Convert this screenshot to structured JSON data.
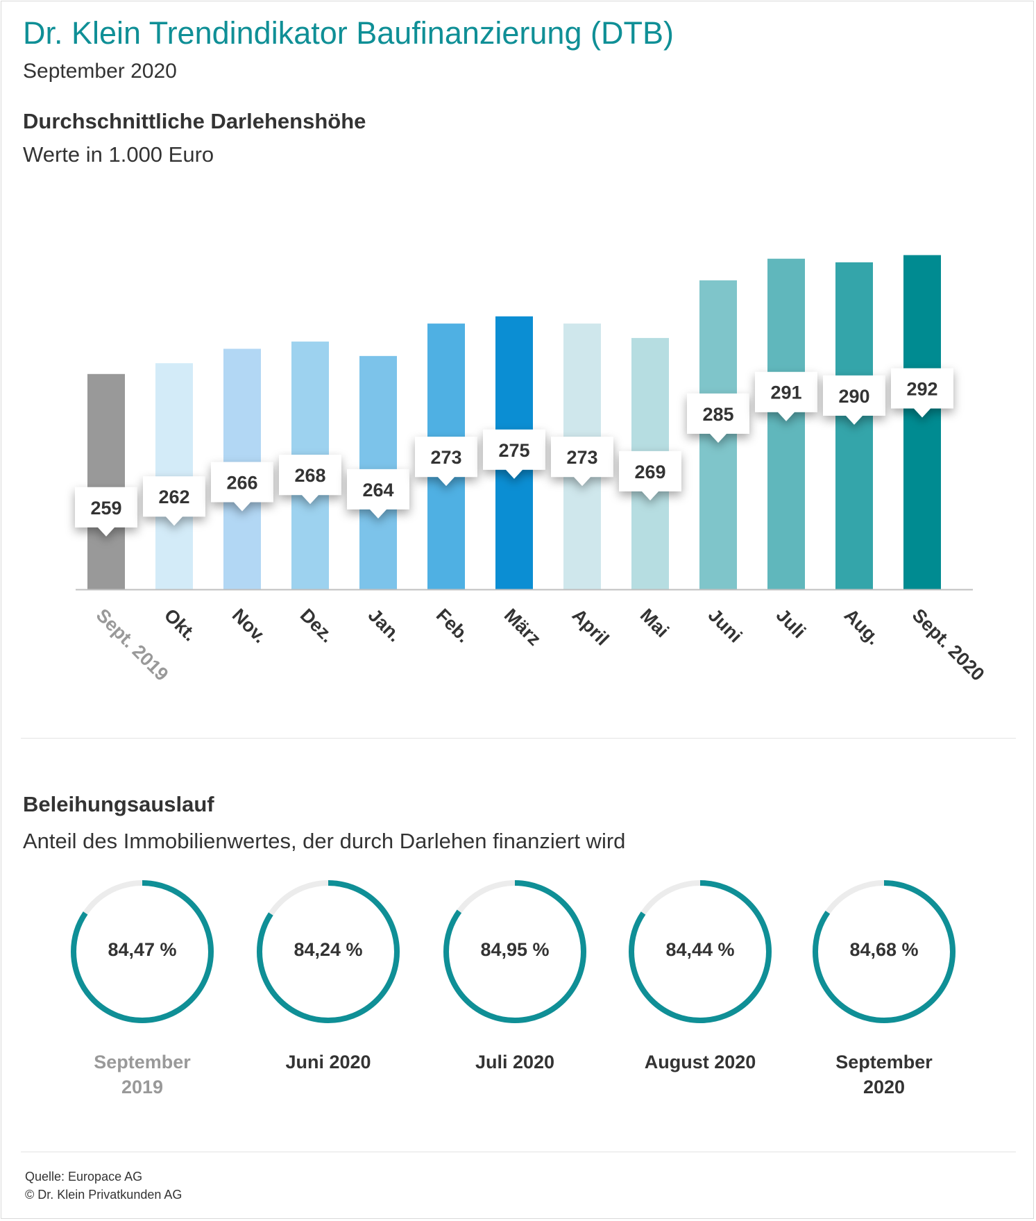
{
  "header": {
    "title": "Dr. Klein Trendindikator Baufinanzierung (DTB)",
    "subtitle": "September 2020"
  },
  "section_loan": {
    "title": "Durchschnittliche Darlehenshöhe",
    "subtitle": "Werte in 1.000 Euro"
  },
  "section_ltv": {
    "title": "Beleihungsauslauf",
    "subtitle": "Anteil des Immobilienwertes, der durch Darlehen finanziert wird"
  },
  "footer": {
    "source": "Quelle: Europace AG",
    "copyright": "© Dr. Klein Privatkunden AG"
  },
  "chart_data": [
    {
      "type": "bar",
      "categories": [
        "Sept. 2019",
        "Okt.",
        "Nov.",
        "Dez.",
        "Jan.",
        "Feb.",
        "März",
        "April",
        "Mai",
        "Juni",
        "Juli",
        "Aug.",
        "Sept. 2020"
      ],
      "values": [
        259,
        262,
        266,
        268,
        264,
        273,
        275,
        273,
        269,
        285,
        291,
        290,
        292
      ],
      "data_labels": [
        "259",
        "262",
        "266",
        "268",
        "264",
        "273",
        "275",
        "273",
        "269",
        "285",
        "291",
        "290",
        "292"
      ],
      "colors": [
        "#999999",
        "#d3ebf8",
        "#b2d7f4",
        "#9dd2ef",
        "#7cc3ea",
        "#4fb0e3",
        "#0b8ed3",
        "#cfe7ec",
        "#b6dde1",
        "#7fc5ca",
        "#60b7bc",
        "#34a5aa",
        "#008b91"
      ],
      "highlight_first_label_color": "#999999",
      "ylim": [
        200,
        300
      ],
      "title": "Durchschnittliche Darlehenshöhe",
      "ylabel": "Werte in 1.000 Euro",
      "grid": false
    },
    {
      "type": "pie",
      "categories": [
        "September 2019",
        "Juni 2020",
        "Juli 2020",
        "August 2020",
        "September 2020"
      ],
      "values": [
        84.47,
        84.24,
        84.95,
        84.44,
        84.68
      ],
      "value_labels": [
        "84,47 %",
        "84,24 %",
        "84,95 %",
        "84,44 %",
        "84,68 %"
      ],
      "unit": "%",
      "ring_color": "#0f8f96",
      "track_color": "#ececec",
      "first_label_color": "#999999",
      "label_color": "#333333"
    }
  ]
}
